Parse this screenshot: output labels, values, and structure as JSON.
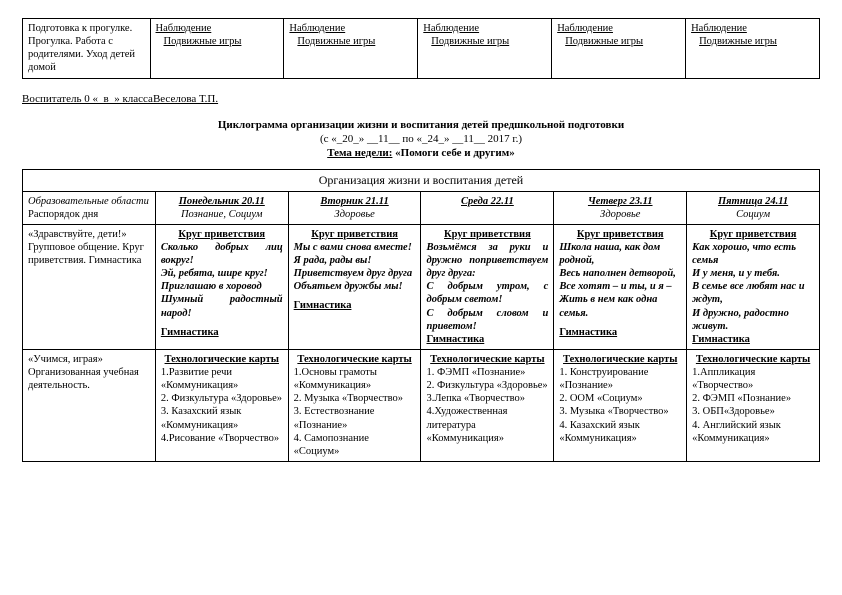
{
  "top_table": {
    "col1": "Подготовка к прогулке. Прогулка. Работа с родителями. Уход детей домой",
    "obs_label": "Наблюдение",
    "obs_sub": "Подвижные игры"
  },
  "teacher_line": "Воспитатель 0 «_в_» классаВеселова Т.П.",
  "title": "Циклограмма организации жизни и воспитания детей предшкольной подготовки",
  "date_line": "(с «_20_» __11__ по «_24_» __11__ 2017 г.)",
  "theme_label": "Тема недели:",
  "theme_value": "«Помоги себе и другим»",
  "main_header": "Организация жизни и воспитания детей",
  "row_label_1a": "Образовательные области",
  "row_label_1b": "Распорядок дня",
  "days": {
    "mon": "Понедельник 20.11",
    "tue": "Вторник 21.11",
    "wed": "Среда 22.11",
    "thu": "Четверг 23.11",
    "fri": "Пятница 24.11"
  },
  "subject_mon": "Познание, Социум",
  "subject_tue": "Здоровье",
  "subject_thu": "Здоровье",
  "subject_fri": "Социум",
  "row2_label": "«Здравствуйте, дети!»\n  Групповое общение. Круг приветствия. Гимнастика",
  "greet_title": "Круг приветствия",
  "gym": "Гимнастика",
  "greet_mon": "Сколько добрых лиц вокруг!\nЭй, ребята, шире круг!\nПриглашаю в хоровод\nШумный радостный народ!",
  "greet_tue": "Мы с вами снова вместе!\nЯ рада, рады вы!\nПриветствуем друг друга\nОбъятьем дружбы мы!",
  "greet_wed": "Возьмёмся за руки и дружно поприветствуем друг друга:\nС добрым утром, с добрым светом!\nС добрым словом и приветом!",
  "greet_thu": "Школа наша, как дом родной,\nВесь наполнен детворой,\nВсе хотят – и ты, и я –\nЖить в нем как одна семья.",
  "greet_fri": "Как хорошо, что есть семья\nИ у меня, и у тебя.\nВ семье все любят нас и ждут,\nИ дружно, радостно живут.",
  "row3_label": "«Учимся, играя» Организованная учебная деятельность.",
  "tech_title": "Технологические карты",
  "tech_mon": [
    "1.Развитие речи «Коммуникация»",
    "2. Физкультура «Здоровье»",
    "3. Казахский язык «Коммуникация»",
    "4.Рисование «Творчество»"
  ],
  "tech_tue": [
    "1.Основы грамоты «Коммуникация»",
    "2. Музыка «Творчество»",
    "3. Естествознание «Познание»",
    "4. Самопознание «Социум»"
  ],
  "tech_wed": [
    "1. ФЭМП «Познание»",
    "2. Физкультура «Здоровье»",
    "3.Лепка «Творчество»",
    "4.Художественная литература «Коммуникация»"
  ],
  "tech_thu": [
    "1. Конструирование «Познание»",
    "2. ООМ «Социум»",
    "3. Музыка «Творчество»",
    "4. Казахский язык «Коммуникация»"
  ],
  "tech_fri": [
    "1.Аппликация «Творчество»",
    "2. ФЭМП «Познание»",
    "3. ОБП«Здоровье»",
    "4. Английский язык «Коммуникация»"
  ]
}
